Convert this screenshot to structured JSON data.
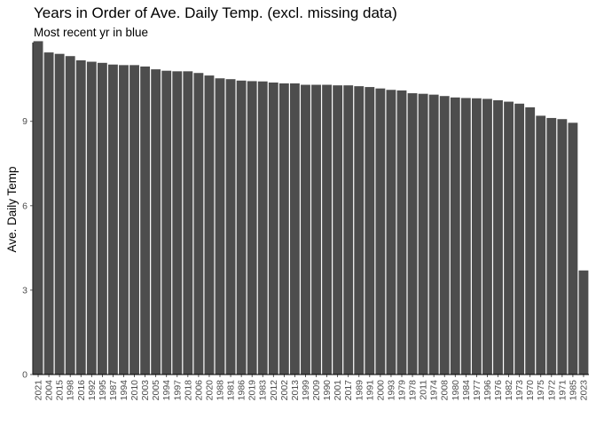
{
  "chart_data": {
    "type": "bar",
    "title": "Years in Order of Ave. Daily Temp. (excl. missing data)",
    "subtitle": "Most recent yr in blue",
    "xlabel": "",
    "ylabel": "Ave. Daily Temp",
    "ylim": [
      0,
      11.8
    ],
    "yticks": [
      0,
      3,
      6,
      9
    ],
    "bar_color": "#4d4d4d",
    "grid": false,
    "categories": [
      "2021",
      "2004",
      "2015",
      "1998",
      "2016",
      "1992",
      "1995",
      "1987",
      "1994",
      "2010",
      "2003",
      "2005",
      "1994",
      "1997",
      "2018",
      "2006",
      "2020",
      "1988",
      "1981",
      "1986",
      "2019",
      "1983",
      "2012",
      "2002",
      "2013",
      "1999",
      "2009",
      "1990",
      "2001",
      "2017",
      "1989",
      "1991",
      "2000",
      "1993",
      "1979",
      "1978",
      "2011",
      "1974",
      "2008",
      "1980",
      "1984",
      "1977",
      "1996",
      "1976",
      "1982",
      "1973",
      "1970",
      "1975",
      "1972",
      "1971",
      "1985",
      "2023"
    ],
    "values": [
      11.85,
      11.45,
      11.4,
      11.32,
      11.17,
      11.12,
      11.08,
      11.02,
      11.0,
      11.0,
      10.95,
      10.85,
      10.8,
      10.78,
      10.78,
      10.72,
      10.63,
      10.53,
      10.5,
      10.45,
      10.43,
      10.42,
      10.38,
      10.35,
      10.35,
      10.3,
      10.3,
      10.3,
      10.28,
      10.28,
      10.25,
      10.22,
      10.17,
      10.12,
      10.1,
      10.0,
      9.98,
      9.95,
      9.9,
      9.85,
      9.83,
      9.82,
      9.8,
      9.75,
      9.7,
      9.63,
      9.5,
      9.2,
      9.12,
      9.08,
      8.95,
      3.7
    ]
  }
}
